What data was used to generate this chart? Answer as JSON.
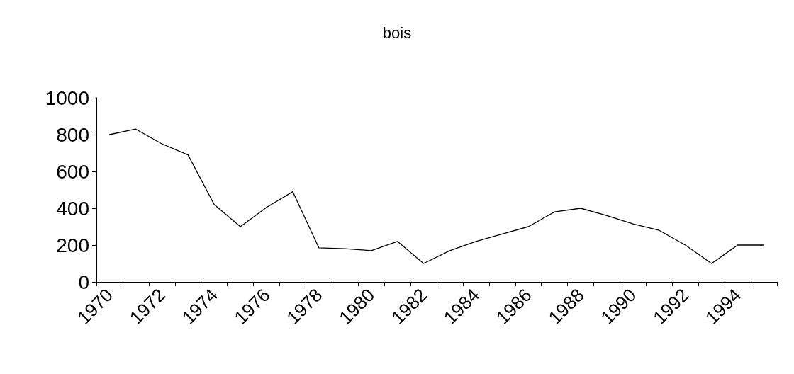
{
  "chart_data": {
    "type": "line",
    "title": "bois",
    "categories": [
      "1970",
      null,
      "1972",
      null,
      "1974",
      null,
      "1976",
      null,
      "1978",
      null,
      "1980",
      null,
      "1982",
      null,
      "1984",
      null,
      "1986",
      null,
      "1988",
      null,
      "1990",
      null,
      "1992",
      null,
      "1994",
      null
    ],
    "series": [
      {
        "color": "#000000",
        "values": [
          800,
          830,
          750,
          690,
          420,
          300,
          405,
          490,
          185,
          180,
          170,
          220,
          100,
          170,
          220,
          260,
          300,
          380,
          400,
          360,
          315,
          280,
          200,
          100,
          200,
          200
        ]
      }
    ],
    "ylim": [
      0,
      1000
    ],
    "yticks": [
      0,
      200,
      400,
      600,
      800,
      1000
    ],
    "grid": false,
    "marker": "none",
    "line_style": "solid"
  }
}
